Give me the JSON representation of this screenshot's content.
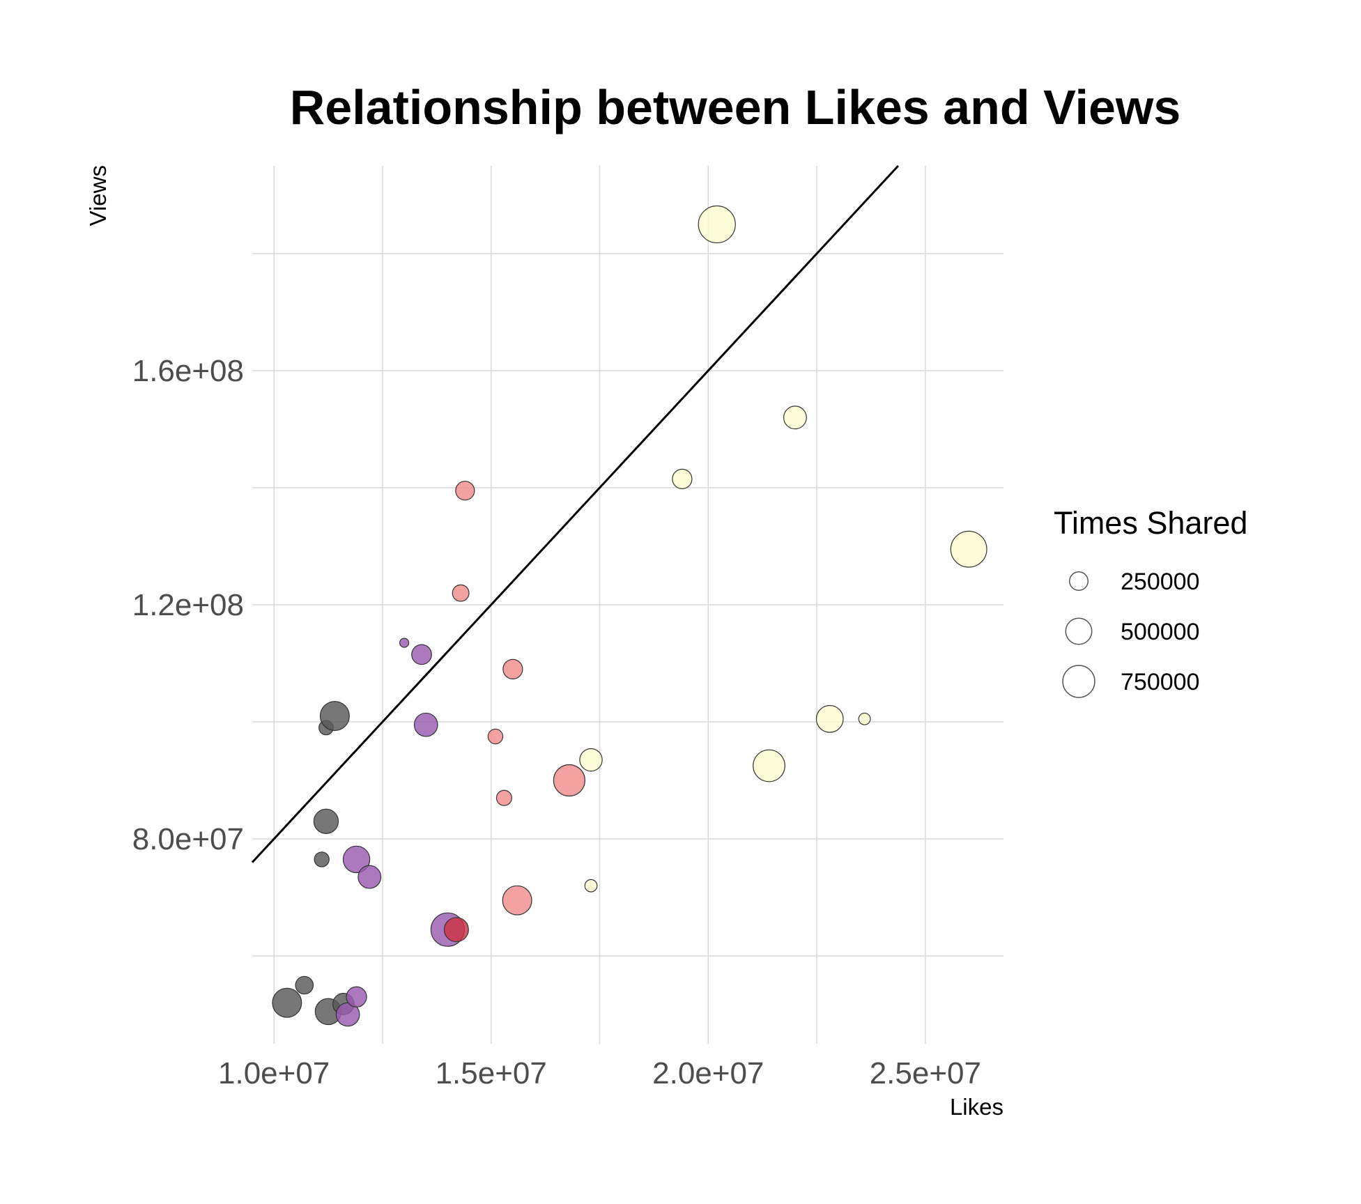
{
  "chart_data": {
    "type": "scatter",
    "title": "Relationship between Likes and Views",
    "xlabel": "Likes",
    "ylabel": "Views",
    "xlim": [
      9500000,
      26800000
    ],
    "ylim": [
      45000000,
      195000000
    ],
    "x_ticks": [
      10000000,
      15000000,
      20000000,
      25000000
    ],
    "x_tick_labels": [
      "1.0e+07",
      "1.5e+07",
      "2.0e+07",
      "2.5e+07"
    ],
    "x_minor_ticks": [
      12500000,
      17500000,
      22500000
    ],
    "y_ticks": [
      80000000,
      120000000,
      160000000
    ],
    "y_tick_labels": [
      "8.0e+07",
      "1.2e+08",
      "1.6e+08"
    ],
    "y_minor_ticks": [
      60000000,
      100000000,
      140000000,
      180000000
    ],
    "grid": true,
    "trend_line": {
      "slope": 8.0,
      "intercept": 0
    },
    "size_legend": {
      "title": "Times Shared",
      "position": "right",
      "entries": [
        {
          "label": "250000",
          "value": 250000
        },
        {
          "label": "500000",
          "value": 500000
        },
        {
          "label": "750000",
          "value": 750000
        }
      ]
    },
    "points": [
      {
        "x": 10300000,
        "y": 52000000,
        "shares": 620000,
        "color": "#595959"
      },
      {
        "x": 10700000,
        "y": 55000000,
        "shares": 230000,
        "color": "#595959"
      },
      {
        "x": 11250000,
        "y": 50500000,
        "shares": 500000,
        "color": "#595959"
      },
      {
        "x": 11600000,
        "y": 51800000,
        "shares": 330000,
        "color": "#595959"
      },
      {
        "x": 11100000,
        "y": 76500000,
        "shares": 160000,
        "color": "#595959"
      },
      {
        "x": 11200000,
        "y": 83000000,
        "shares": 440000,
        "color": "#595959"
      },
      {
        "x": 11200000,
        "y": 99000000,
        "shares": 150000,
        "color": "#595959"
      },
      {
        "x": 11400000,
        "y": 101000000,
        "shares": 620000,
        "color": "#595959"
      },
      {
        "x": 11700000,
        "y": 50000000,
        "shares": 400000,
        "color": "#9a5ab0"
      },
      {
        "x": 11900000,
        "y": 53000000,
        "shares": 300000,
        "color": "#9a5ab0"
      },
      {
        "x": 11900000,
        "y": 76500000,
        "shares": 520000,
        "color": "#9a5ab0"
      },
      {
        "x": 12200000,
        "y": 73500000,
        "shares": 380000,
        "color": "#9a5ab0"
      },
      {
        "x": 13000000,
        "y": 113500000,
        "shares": 60000,
        "color": "#9a5ab0"
      },
      {
        "x": 13400000,
        "y": 111500000,
        "shares": 290000,
        "color": "#9a5ab0"
      },
      {
        "x": 13500000,
        "y": 99500000,
        "shares": 400000,
        "color": "#9a5ab0"
      },
      {
        "x": 14000000,
        "y": 64500000,
        "shares": 820000,
        "color": "#9a5ab0"
      },
      {
        "x": 14200000,
        "y": 64500000,
        "shares": 430000,
        "color": "#cc3344"
      },
      {
        "x": 14300000,
        "y": 122000000,
        "shares": 200000,
        "color": "#f08c8c"
      },
      {
        "x": 14400000,
        "y": 139500000,
        "shares": 260000,
        "color": "#f08c8c"
      },
      {
        "x": 15100000,
        "y": 97500000,
        "shares": 160000,
        "color": "#f08c8c"
      },
      {
        "x": 15300000,
        "y": 87000000,
        "shares": 170000,
        "color": "#f08c8c"
      },
      {
        "x": 15500000,
        "y": 109000000,
        "shares": 280000,
        "color": "#f08c8c"
      },
      {
        "x": 15600000,
        "y": 69500000,
        "shares": 620000,
        "color": "#f08c8c"
      },
      {
        "x": 16800000,
        "y": 90000000,
        "shares": 720000,
        "color": "#f08c8c"
      },
      {
        "x": 17300000,
        "y": 93500000,
        "shares": 370000,
        "color": "#fbfbd0"
      },
      {
        "x": 17300000,
        "y": 72000000,
        "shares": 110000,
        "color": "#fbfbd0"
      },
      {
        "x": 19400000,
        "y": 141500000,
        "shares": 280000,
        "color": "#fbfbd0"
      },
      {
        "x": 20200000,
        "y": 185000000,
        "shares": 1000000,
        "color": "#fbfbd0"
      },
      {
        "x": 21400000,
        "y": 92500000,
        "shares": 740000,
        "color": "#fbfbd0"
      },
      {
        "x": 22000000,
        "y": 152000000,
        "shares": 380000,
        "color": "#fbfbd0"
      },
      {
        "x": 22800000,
        "y": 100500000,
        "shares": 530000,
        "color": "#fbfbd0"
      },
      {
        "x": 23600000,
        "y": 100500000,
        "shares": 100000,
        "color": "#fbfbd0"
      },
      {
        "x": 26000000,
        "y": 129500000,
        "shares": 950000,
        "color": "#fbfbd0"
      }
    ]
  }
}
